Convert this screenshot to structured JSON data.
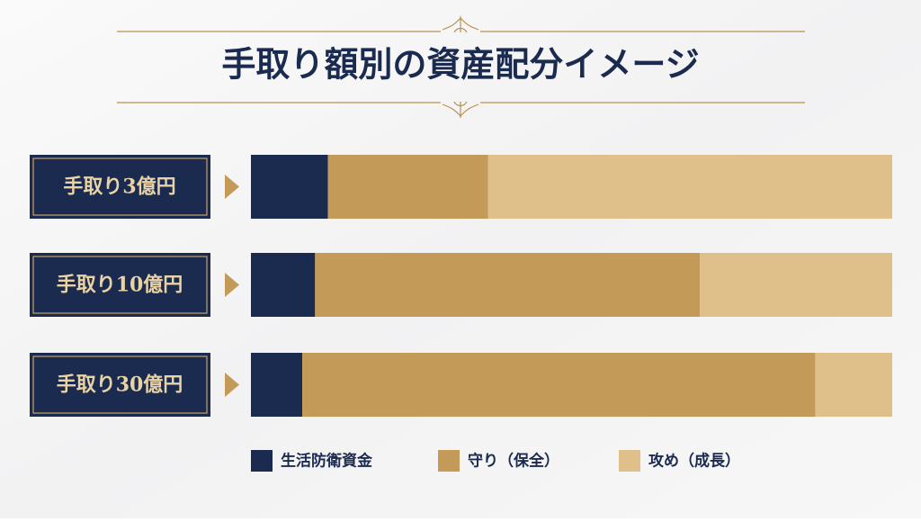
{
  "chart_data": {
    "type": "stacked-bar-horizontal",
    "title": "手取り額別の資産配分イメージ",
    "categories": [
      "手取り3億円",
      "手取り10億円",
      "手取り30億円"
    ],
    "series": [
      {
        "name": "生活防衛資金",
        "color": "#1b2a4f",
        "values": [
          12,
          10,
          8
        ]
      },
      {
        "name": "守り（保全）",
        "color": "#c39a57",
        "values": [
          25,
          60,
          80
        ]
      },
      {
        "name": "攻め（成長）",
        "color": "#dfc08b",
        "values": [
          63,
          30,
          12
        ]
      }
    ],
    "xlim": [
      0,
      100
    ]
  }
}
